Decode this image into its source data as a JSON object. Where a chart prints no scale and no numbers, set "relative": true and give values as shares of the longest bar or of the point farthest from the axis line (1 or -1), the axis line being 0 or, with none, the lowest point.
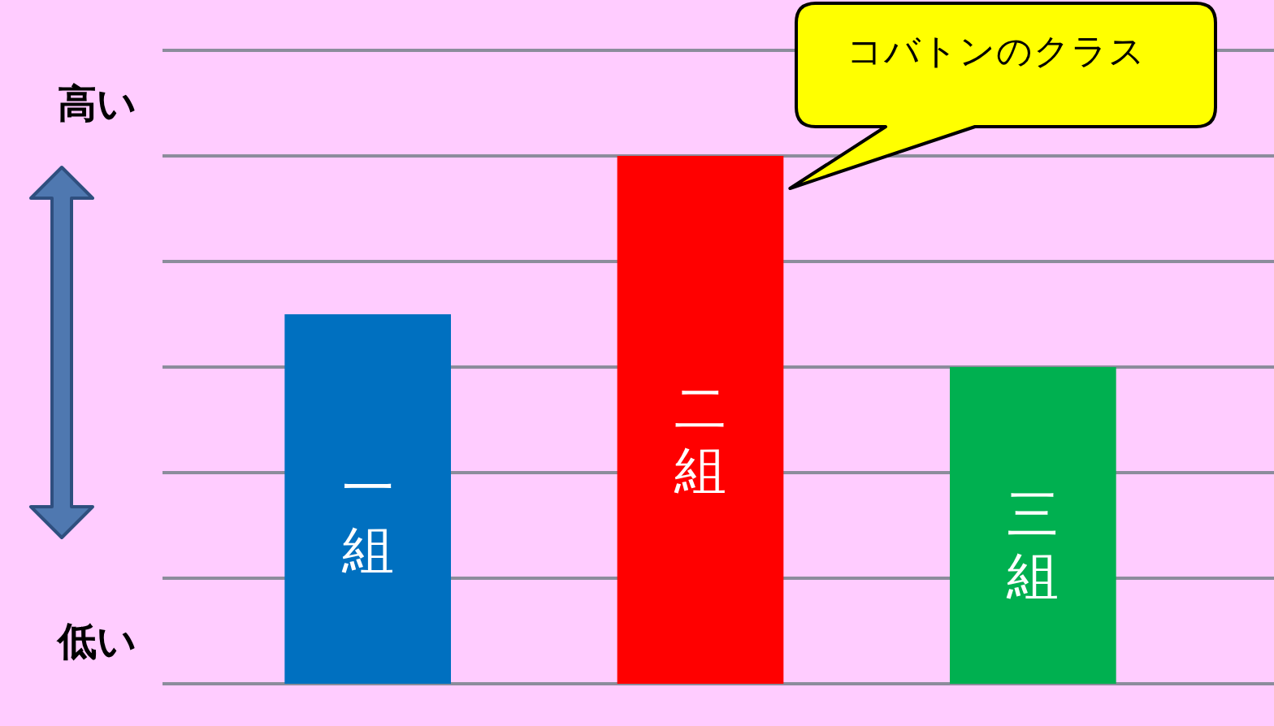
{
  "chart_data": {
    "type": "bar",
    "categories": [
      "一組",
      "二組",
      "三組"
    ],
    "values": [
      0.7,
      1,
      0.6
    ],
    "colors": [
      "#0070c0",
      "#ff0000",
      "#00b050"
    ],
    "relative": true,
    "grid": "y",
    "annotations": [
      "コバトンのクラス",
      "高い",
      "低い"
    ]
  }
}
